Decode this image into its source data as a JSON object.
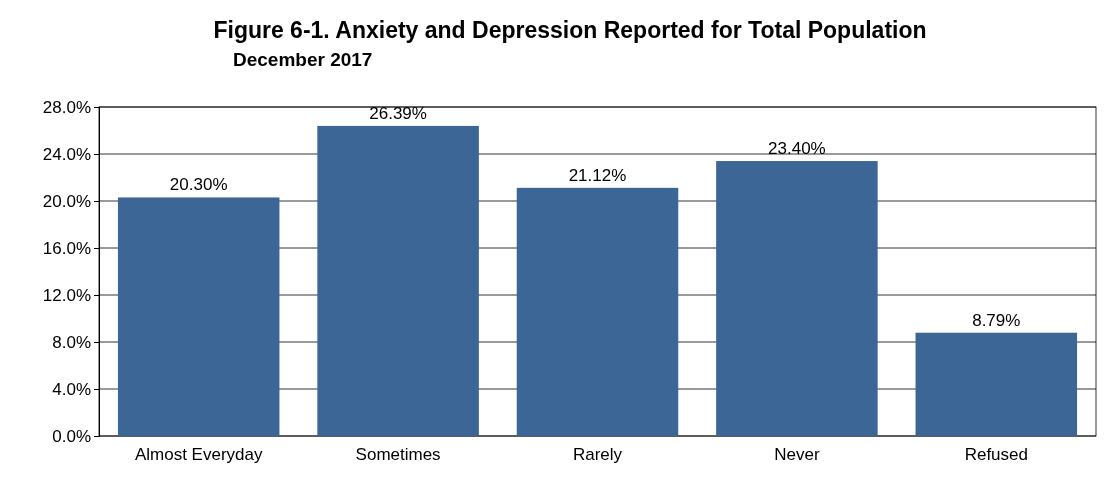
{
  "chart_data": {
    "type": "bar",
    "title": "Figure 6-1. Anxiety and Depression Reported for Total Population",
    "subtitle": "December 2017",
    "categories": [
      "Almost Everyday",
      "Sometimes",
      "Rarely",
      "Never",
      "Refused"
    ],
    "values": [
      20.3,
      26.39,
      21.12,
      23.4,
      8.79
    ],
    "value_labels": [
      "20.30%",
      "26.39%",
      "21.12%",
      "23.40%",
      "8.79%"
    ],
    "color": "#3b6696",
    "ylim": [
      0,
      28
    ],
    "yticks": [
      {
        "value": 0,
        "label": "0.0%"
      },
      {
        "value": 4,
        "label": "4.0%"
      },
      {
        "value": 8,
        "label": "8.0%"
      },
      {
        "value": 12,
        "label": "12.0%"
      },
      {
        "value": 16,
        "label": "16.0%"
      },
      {
        "value": 20,
        "label": "20.0%"
      },
      {
        "value": 24,
        "label": "24.0%"
      },
      {
        "value": 28,
        "label": "28.0%"
      }
    ],
    "grid": "y"
  }
}
